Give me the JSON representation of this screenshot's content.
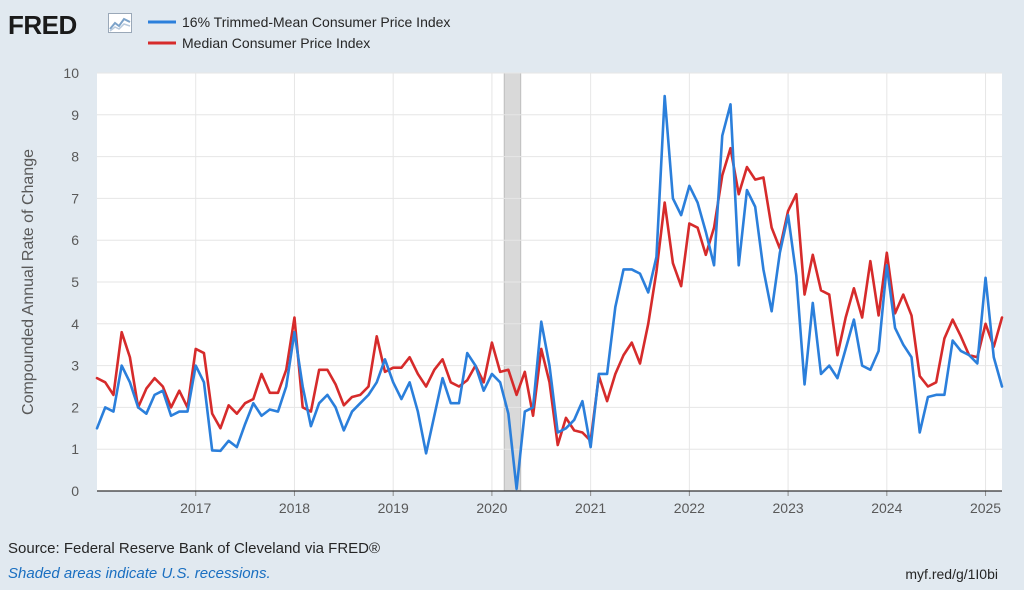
{
  "logo": {
    "text": "FRED"
  },
  "footer": {
    "source": "Source: Federal Reserve Bank of Cleveland via FRED®",
    "note": "Shaded areas indicate U.S. recessions.",
    "url": "myf.red/g/1I0bi"
  },
  "colors": {
    "trimmed": "#2b7fdb",
    "median": "#d62b2b",
    "recession": "#d9d9d9",
    "plot_bg": "#ffffff"
  },
  "chart_data": {
    "type": "line",
    "ylabel": "Compounded Annual Rate of Change",
    "ylim": [
      0,
      10
    ],
    "yticks": [
      "0",
      "1",
      "2",
      "3",
      "4",
      "5",
      "6",
      "7",
      "8",
      "9",
      "10"
    ],
    "xticks": [
      "2017",
      "2018",
      "2019",
      "2020",
      "2021",
      "2022",
      "2023",
      "2024",
      "2025"
    ],
    "x_start": "2016-01",
    "x_end": "2025-03",
    "grid": true,
    "legend_position": "top-left",
    "recession": {
      "start": "2020-03",
      "end": "2020-04"
    },
    "series": [
      {
        "name": "16% Trimmed-Mean Consumer Price Index",
        "values": [
          1.5,
          2.0,
          1.9,
          3.0,
          2.6,
          2.0,
          1.85,
          2.3,
          2.4,
          1.8,
          1.9,
          1.9,
          3.0,
          2.6,
          0.97,
          0.96,
          1.2,
          1.05,
          1.6,
          2.1,
          1.8,
          1.95,
          1.9,
          2.5,
          3.8,
          2.5,
          1.55,
          2.1,
          2.3,
          2.0,
          1.45,
          1.9,
          2.1,
          2.3,
          2.6,
          3.15,
          2.6,
          2.2,
          2.6,
          1.9,
          0.9,
          1.8,
          2.7,
          2.1,
          2.1,
          3.3,
          3.0,
          2.4,
          2.8,
          2.6,
          1.85,
          0.05,
          1.9,
          2.0,
          4.05,
          3.0,
          1.4,
          1.5,
          1.7,
          2.15,
          1.05,
          2.8,
          2.8,
          4.4,
          5.3,
          5.3,
          5.2,
          4.75,
          5.6,
          9.45,
          7.0,
          6.6,
          7.3,
          6.9,
          6.2,
          5.4,
          8.5,
          9.25,
          5.4,
          7.2,
          6.8,
          5.3,
          4.3,
          5.7,
          6.6,
          5.15,
          2.55,
          4.5,
          2.8,
          3.0,
          2.7,
          3.4,
          4.1,
          3.0,
          2.9,
          3.35,
          5.4,
          3.9,
          3.5,
          3.2,
          1.4,
          2.25,
          2.3,
          2.3,
          3.6,
          3.35,
          3.25,
          3.05,
          5.1,
          3.2,
          2.5
        ]
      },
      {
        "name": "Median Consumer Price Index",
        "values": [
          2.7,
          2.6,
          2.3,
          3.8,
          3.2,
          2.0,
          2.45,
          2.7,
          2.5,
          2.0,
          2.4,
          2.0,
          3.4,
          3.3,
          1.85,
          1.5,
          2.05,
          1.85,
          2.1,
          2.2,
          2.8,
          2.35,
          2.35,
          2.9,
          4.15,
          2.0,
          1.9,
          2.9,
          2.9,
          2.55,
          2.05,
          2.25,
          2.3,
          2.5,
          3.7,
          2.85,
          2.95,
          2.95,
          3.2,
          2.8,
          2.5,
          2.9,
          3.15,
          2.6,
          2.5,
          2.65,
          3.0,
          2.6,
          3.55,
          2.85,
          2.9,
          2.3,
          2.85,
          1.8,
          3.4,
          2.6,
          1.1,
          1.75,
          1.45,
          1.4,
          1.2,
          2.75,
          2.15,
          2.8,
          3.25,
          3.55,
          3.05,
          4.0,
          5.25,
          6.9,
          5.45,
          4.9,
          6.4,
          6.3,
          5.65,
          6.3,
          7.55,
          8.2,
          7.1,
          7.75,
          7.45,
          7.5,
          6.3,
          5.8,
          6.7,
          7.1,
          4.7,
          5.65,
          4.8,
          4.7,
          3.25,
          4.15,
          4.85,
          4.15,
          5.5,
          4.2,
          5.7,
          4.25,
          4.7,
          4.2,
          2.75,
          2.5,
          2.6,
          3.65,
          4.1,
          3.7,
          3.25,
          3.2,
          4.0,
          3.45,
          4.15
        ]
      }
    ]
  }
}
